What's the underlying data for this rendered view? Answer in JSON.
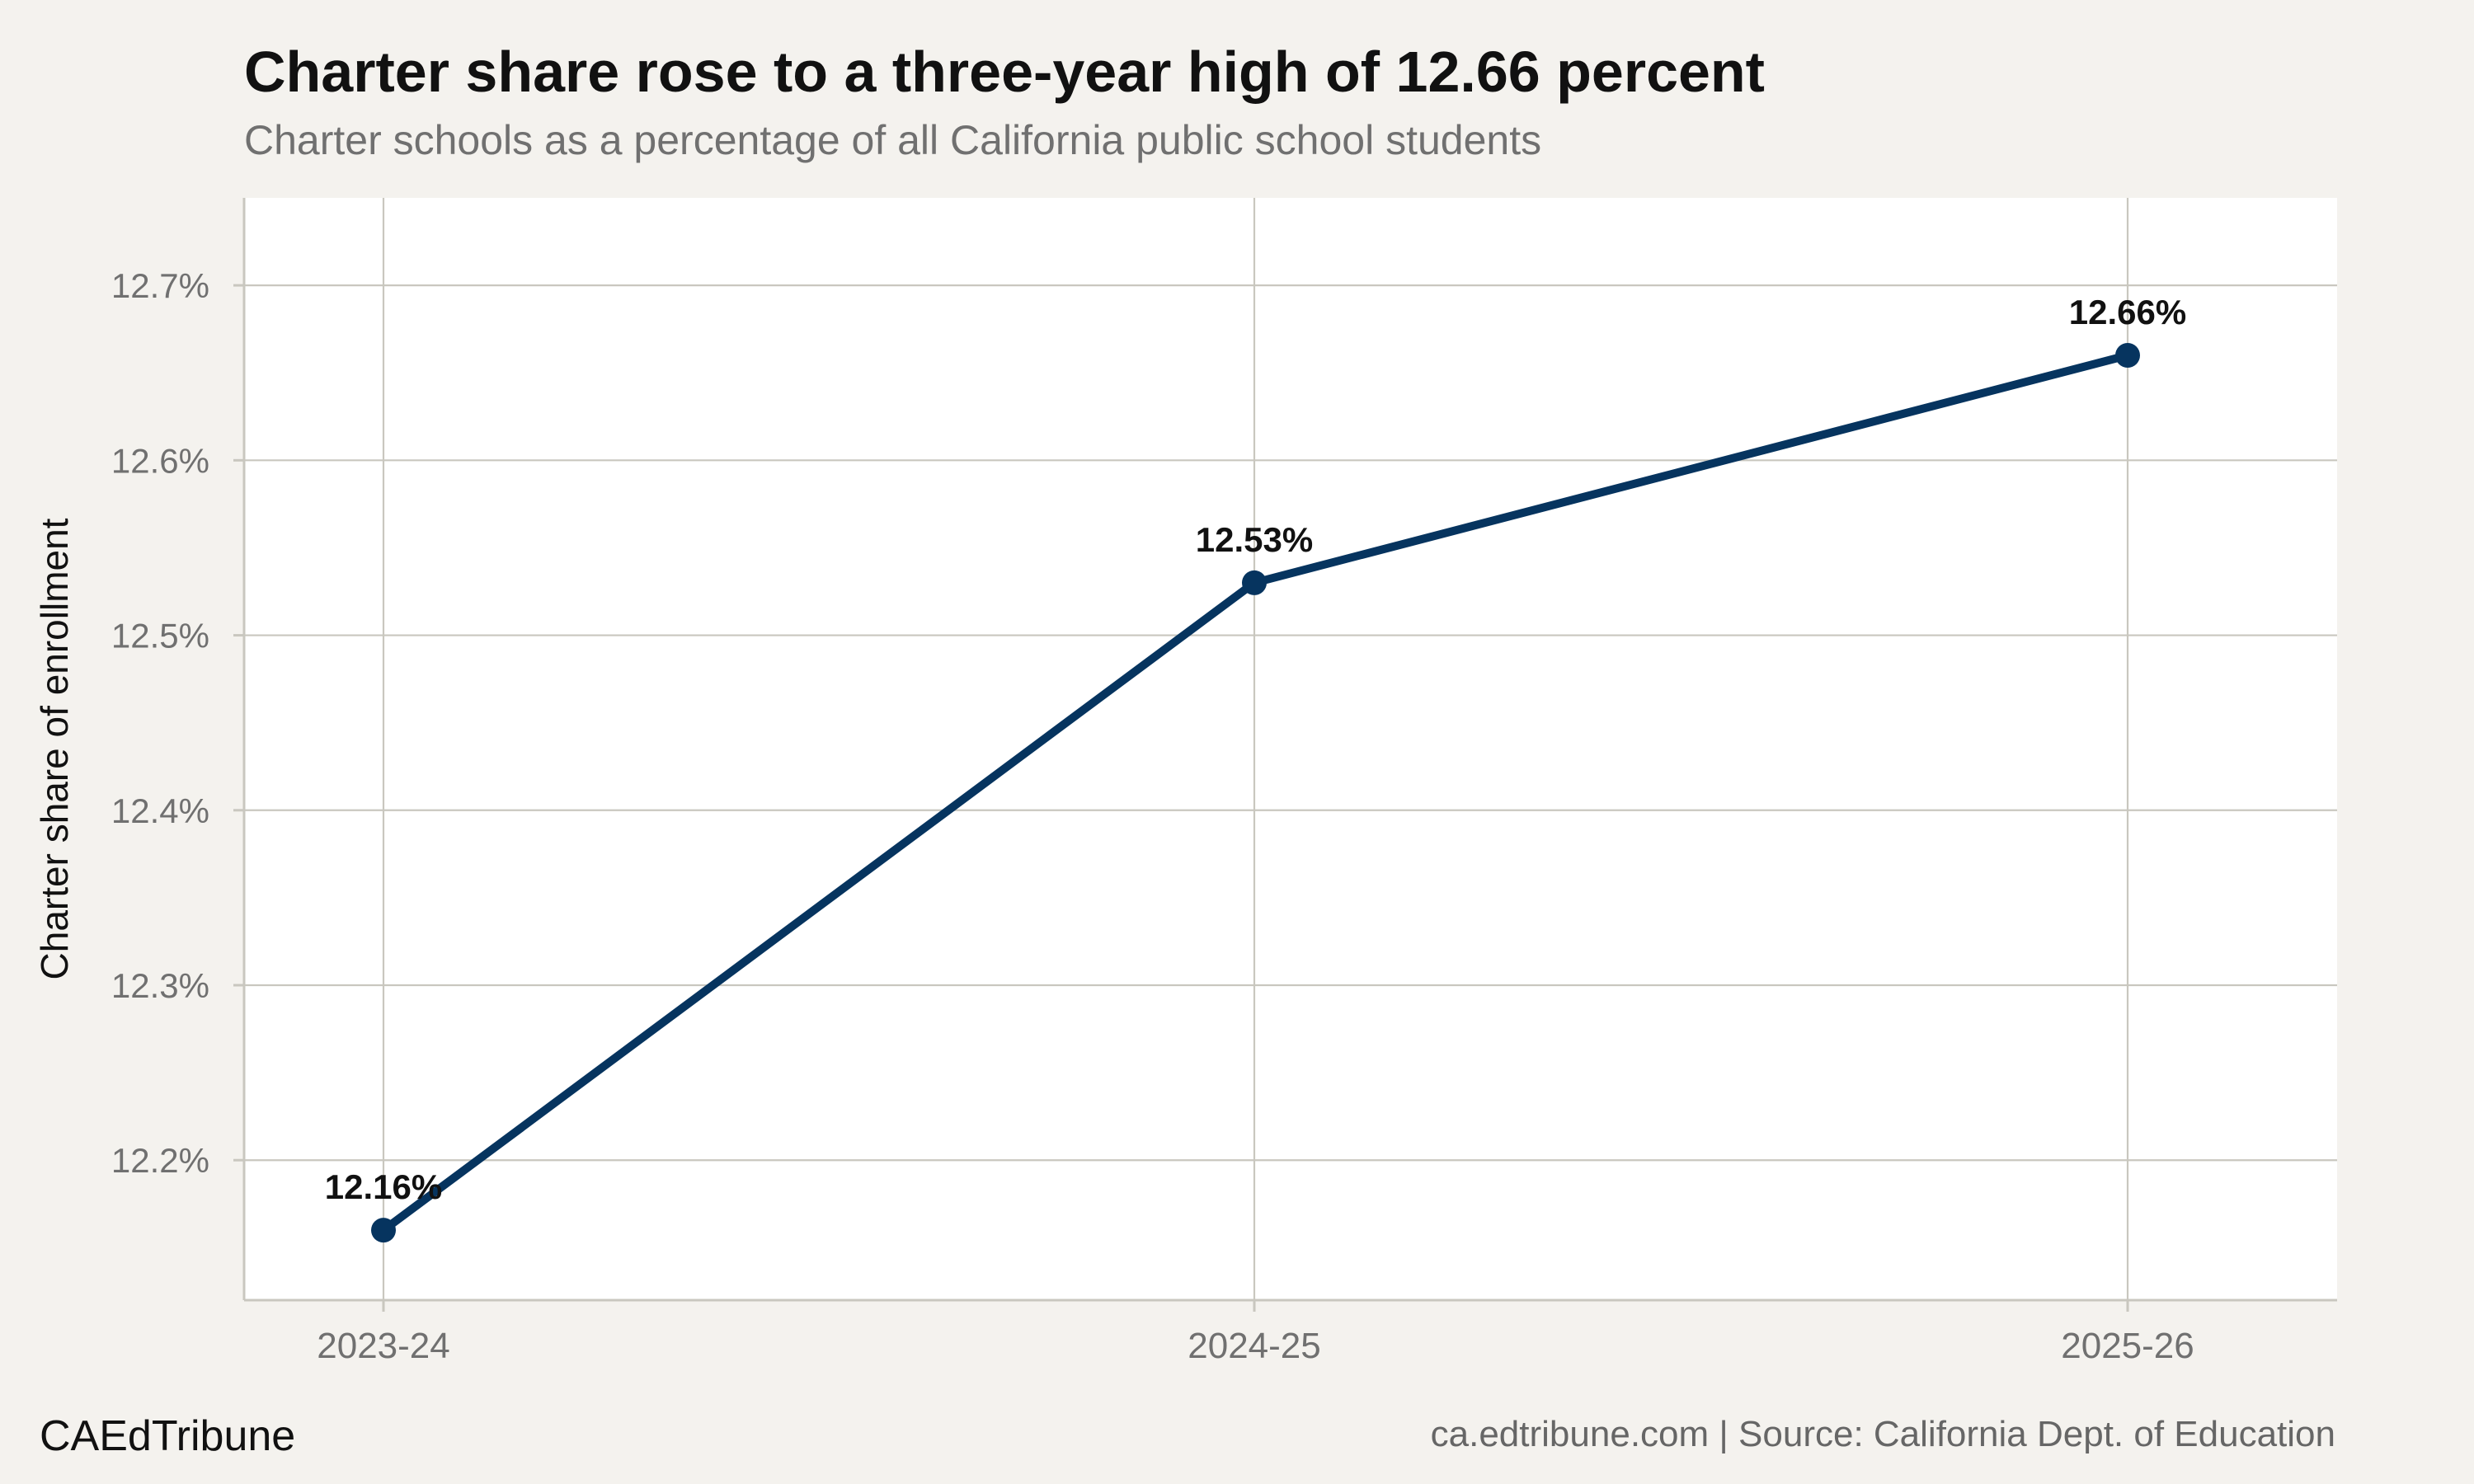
{
  "header": {
    "title": "Charter share rose to a three-year high of 12.66 percent",
    "subtitle": "Charter schools as a percentage of all California public school students"
  },
  "footer": {
    "brand": "CAEdTribune",
    "source": "ca.edtribune.com | Source: California Dept. of Education"
  },
  "colors": {
    "background": "#f4f2ee",
    "panel": "#ffffff",
    "grid": "#c9c7bf",
    "line": "#06345f",
    "axis_text": "#707070",
    "data_label": "#111111"
  },
  "chart_data": {
    "type": "line",
    "title": "Charter share rose to a three-year high of 12.66 percent",
    "subtitle": "Charter schools as a percentage of all California public school students",
    "xlabel": "",
    "ylabel": "Charter share of enrollment",
    "categories": [
      "2023-24",
      "2024-25",
      "2025-26"
    ],
    "series": [
      {
        "values": [
          12.16,
          12.53,
          12.66
        ],
        "data_labels": [
          "12.16%",
          "12.53%",
          "12.66%"
        ]
      }
    ],
    "ylim": [
      12.12,
      12.75
    ],
    "yticks": [
      12.2,
      12.3,
      12.4,
      12.5,
      12.6,
      12.7
    ],
    "ytick_labels": [
      "12.2%",
      "12.3%",
      "12.4%",
      "12.5%",
      "12.6%",
      "12.7%"
    ],
    "grid": true,
    "legend": false
  }
}
